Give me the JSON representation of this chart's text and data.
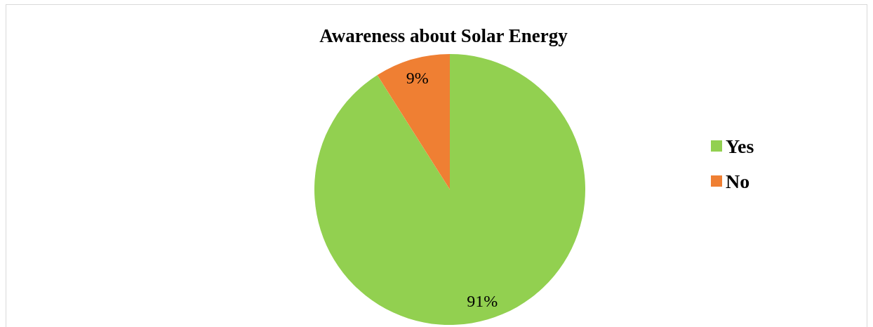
{
  "chart_data": {
    "type": "pie",
    "title": "Awareness about Solar Energy",
    "categories": [
      "Yes",
      "No"
    ],
    "values": [
      91,
      9
    ],
    "colors": [
      "#92d050",
      "#ef7f33"
    ],
    "value_labels": [
      "91%",
      "9%"
    ],
    "legend": "right"
  }
}
